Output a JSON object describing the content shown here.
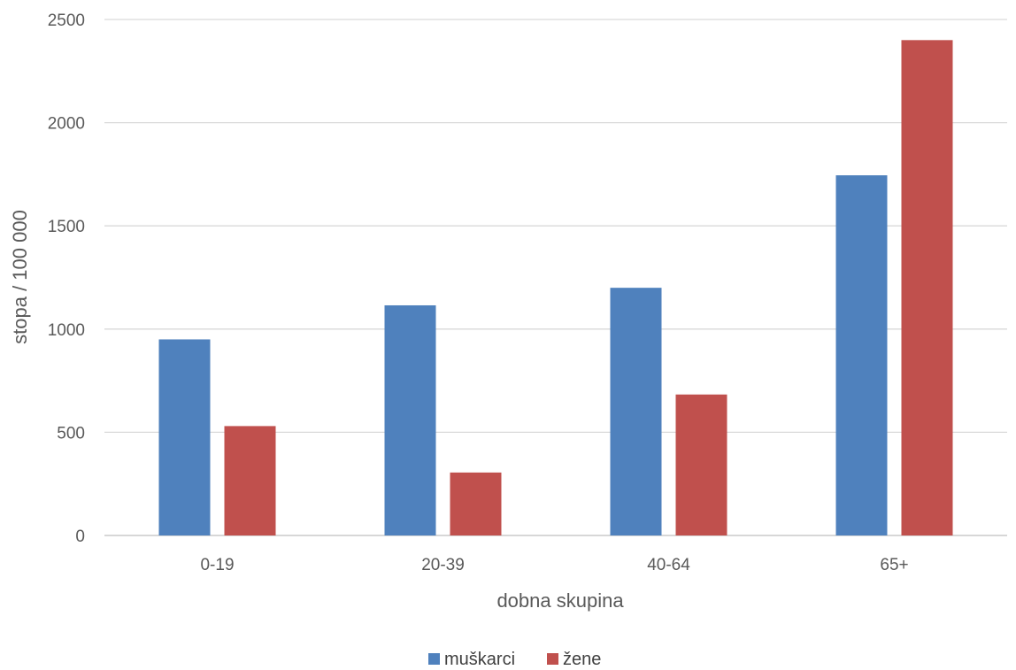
{
  "chart_data": {
    "type": "bar",
    "categories": [
      "0-19",
      "20-39",
      "40-64",
      "65+"
    ],
    "series": [
      {
        "name": "muškarci",
        "values": [
          950,
          1115,
          1200,
          1745
        ],
        "color": "#4F81BD"
      },
      {
        "name": "žene",
        "values": [
          530,
          305,
          683,
          2400
        ],
        "color": "#C0504D"
      }
    ],
    "xlabel": "dobna skupina",
    "ylabel": "stopa / 100 000",
    "ylim": [
      0,
      2500
    ],
    "yticks": [
      0,
      500,
      1000,
      1500,
      2000,
      2500
    ],
    "grid": true,
    "legend_position": "bottom",
    "gridline_color": "#D9D9D9",
    "axis_line_color": "#BFBFBF"
  }
}
